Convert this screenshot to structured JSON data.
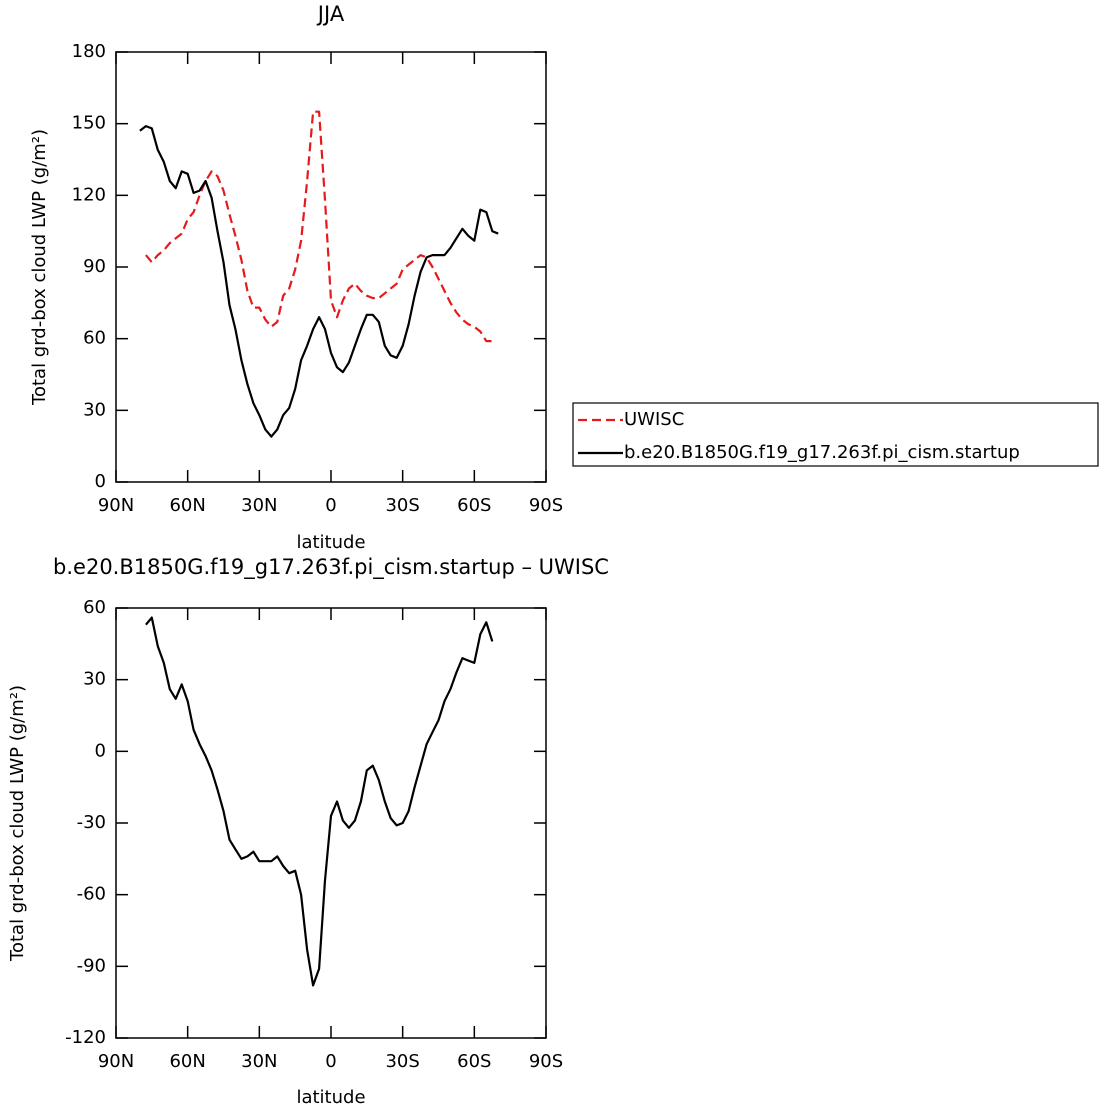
{
  "chart_data": [
    {
      "type": "line",
      "title": "JJA",
      "xlabel": "latitude",
      "ylabel": "Total grd-box cloud LWP (g/m²)",
      "x": [
        80,
        77.5,
        75,
        72.5,
        70,
        67.5,
        65,
        62.5,
        60,
        57.5,
        55,
        52.5,
        50,
        47.5,
        45,
        42.5,
        40,
        37.5,
        35,
        32.5,
        30,
        27.5,
        25,
        22.5,
        20,
        17.5,
        15,
        12.5,
        10,
        7.5,
        5,
        2.5,
        0,
        -2.5,
        -5,
        -7.5,
        -10,
        -12.5,
        -15,
        -17.5,
        -20,
        -22.5,
        -25,
        -27.5,
        -30,
        -32.5,
        -35,
        -37.5,
        -40,
        -42.5,
        -45,
        -47.5,
        -50,
        -52.5,
        -55,
        -57.5,
        -60,
        -62.5,
        -65,
        -67.5,
        -70
      ],
      "series": [
        {
          "name": "UWISC",
          "color": "#e41a1c",
          "style": "dashed",
          "values": [
            null,
            95,
            92,
            95,
            97,
            100,
            102,
            104,
            110,
            113,
            120,
            126,
            130,
            128,
            122,
            112,
            103,
            93,
            80,
            73,
            73,
            68,
            65,
            67,
            78,
            81,
            89,
            101,
            126,
            155,
            155,
            118,
            76,
            69,
            76,
            81,
            83,
            80,
            78,
            77,
            77,
            79,
            81,
            83,
            89,
            91,
            93,
            95,
            94,
            90,
            85,
            80,
            75,
            71,
            68,
            66,
            65,
            63,
            59,
            59,
            null
          ]
        },
        {
          "name": "b.e20.B1850G.f19_g17.263f.pi_cism.startup",
          "color": "#000000",
          "style": "solid",
          "values": [
            147,
            149,
            148,
            139,
            134,
            126,
            123,
            130,
            129,
            121,
            122,
            126,
            119,
            105,
            92,
            74,
            64,
            51,
            41,
            33,
            28,
            22,
            19,
            22,
            28,
            31,
            39,
            51,
            57,
            64,
            69,
            64,
            54,
            48,
            46,
            50,
            57,
            64,
            70,
            70,
            67,
            57,
            53,
            52,
            57,
            66,
            78,
            88,
            94,
            95,
            95,
            95,
            98,
            102,
            106,
            103,
            101,
            114,
            113,
            105,
            104
          ]
        }
      ],
      "xlim": [
        90,
        -90
      ],
      "ylim": [
        0,
        180
      ],
      "xticks": [
        {
          "value": 90,
          "label": "90N"
        },
        {
          "value": 60,
          "label": "60N"
        },
        {
          "value": 30,
          "label": "30N"
        },
        0,
        {
          "value": -30,
          "label": "30S"
        },
        {
          "value": -60,
          "label": "60S"
        },
        {
          "value": -90,
          "label": "90S"
        }
      ],
      "yticks": [
        0,
        30,
        60,
        90,
        120,
        150,
        180
      ],
      "legend": "right"
    },
    {
      "type": "line",
      "title": "b.e20.B1850G.f19_g17.263f.pi_cism.startup – UWISC",
      "xlabel": "latitude",
      "ylabel": "Total grd-box cloud LWP (g/m²)",
      "x": [
        80,
        77.5,
        75,
        72.5,
        70,
        67.5,
        65,
        62.5,
        60,
        57.5,
        55,
        52.5,
        50,
        47.5,
        45,
        42.5,
        40,
        37.5,
        35,
        32.5,
        30,
        27.5,
        25,
        22.5,
        20,
        17.5,
        15,
        12.5,
        10,
        7.5,
        5,
        2.5,
        0,
        -2.5,
        -5,
        -7.5,
        -10,
        -12.5,
        -15,
        -17.5,
        -20,
        -22.5,
        -25,
        -27.5,
        -30,
        -32.5,
        -35,
        -37.5,
        -40,
        -42.5,
        -45,
        -47.5,
        -50,
        -52.5,
        -55,
        -57.5,
        -60,
        -62.5,
        -65,
        -67.5,
        -70
      ],
      "series": [
        {
          "color": "#000000",
          "style": "solid",
          "values": [
            null,
            53,
            56,
            44,
            37,
            26,
            22,
            28,
            21,
            9,
            3,
            -2,
            -8,
            -16,
            -25,
            -37,
            -41,
            -45,
            -44,
            -42,
            -46,
            -46,
            -46,
            -44,
            -48,
            -51,
            -50,
            -60,
            -83,
            -98,
            -91,
            -54,
            -27,
            -21,
            -29,
            -32,
            -29,
            -21,
            -8,
            -6,
            -12,
            -21,
            -28,
            -31,
            -30,
            -25,
            -15,
            -6,
            3,
            8,
            13,
            21,
            26,
            33,
            39,
            38,
            37,
            49,
            54,
            46,
            null
          ]
        }
      ],
      "xlim": [
        90,
        -90
      ],
      "ylim": [
        -120,
        60
      ],
      "xticks": [
        {
          "value": 90,
          "label": "90N"
        },
        {
          "value": 60,
          "label": "60N"
        },
        {
          "value": 30,
          "label": "30N"
        },
        0,
        {
          "value": -30,
          "label": "30S"
        },
        {
          "value": -60,
          "label": "60S"
        },
        {
          "value": -90,
          "label": "90S"
        }
      ],
      "yticks": [
        -120,
        -90,
        -60,
        -30,
        0,
        30,
        60
      ]
    }
  ]
}
